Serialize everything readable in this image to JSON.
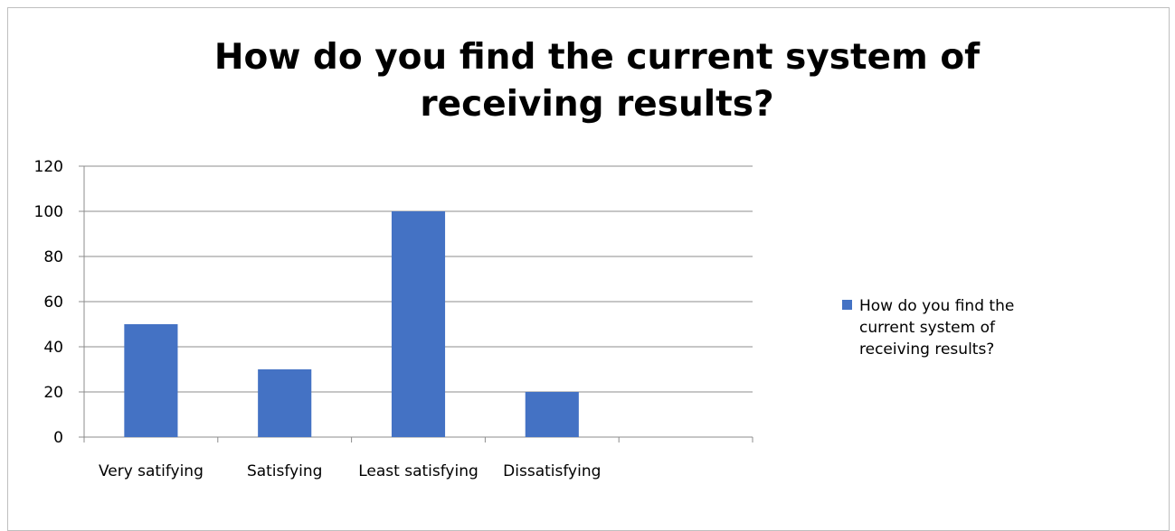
{
  "chart_data": {
    "type": "bar",
    "title": "How do you find the current system of receiving results?",
    "categories": [
      "Very satifying",
      "Satisfying",
      "Least satisfying",
      "Dissatisfying",
      ""
    ],
    "series": [
      {
        "name": "How do you find the current system of receiving results?",
        "values": [
          50,
          30,
          100,
          20,
          null
        ],
        "color": "#4472C4"
      }
    ],
    "ylim": [
      0,
      120
    ],
    "yticks": [
      0,
      20,
      40,
      60,
      80,
      100,
      120
    ],
    "grid": true,
    "legend_position": "right",
    "xlabel": "",
    "ylabel": ""
  }
}
